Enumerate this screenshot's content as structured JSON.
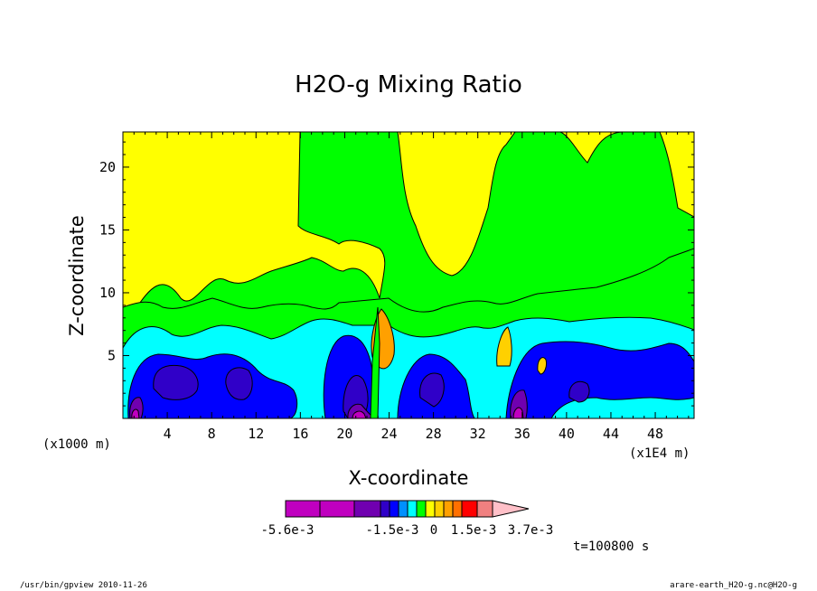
{
  "chart_data": {
    "type": "heatmap",
    "title": "H2O-g Mixing Ratio",
    "xlabel": "X-coordinate",
    "ylabel": "Z-coordinate",
    "x_unit_left": "(x1000 m)",
    "x_unit_right": "(x1E4 m)",
    "xlim": [
      0,
      51.5
    ],
    "ylim": [
      0,
      22.8
    ],
    "x_ticks": [
      4,
      8,
      12,
      16,
      20,
      24,
      28,
      32,
      36,
      40,
      44,
      48
    ],
    "y_ticks": [
      5,
      10,
      15,
      20
    ],
    "time_label": "t=100800 s",
    "colorbar": {
      "colors": [
        "#c000c0",
        "#c000c0",
        "#7000b0",
        "#3000c8",
        "#0000ff",
        "#0090ff",
        "#00ffff",
        "#00ff00",
        "#ffff00",
        "#ffd000",
        "#ffa000",
        "#ff7000",
        "#ff0000",
        "#f08080",
        "#ffc0c8"
      ],
      "labels": [
        "-5.6e-3",
        "-1.5e-3",
        "0",
        "1.5e-3",
        "3.7e-3"
      ],
      "triangle_end": "right"
    },
    "regions": [
      {
        "color": "#ffff00",
        "description": "background level"
      },
      {
        "color": "#00ff00",
        "description": "upper plume and mid level band"
      },
      {
        "color": "#00ffff",
        "description": "lower level band"
      },
      {
        "color": "#0000ff",
        "description": "low level blobs"
      },
      {
        "color": "#3000c8",
        "description": "deep low level blobs"
      },
      {
        "color": "#7000b0",
        "description": "surface minima"
      },
      {
        "color": "#ffa000",
        "description": "positive anomaly near x=22-23"
      }
    ]
  },
  "footer": {
    "left": "/usr/bin/gpview   2010-11-26",
    "right": "arare-earth_H2O-g.nc@H2O-g"
  }
}
